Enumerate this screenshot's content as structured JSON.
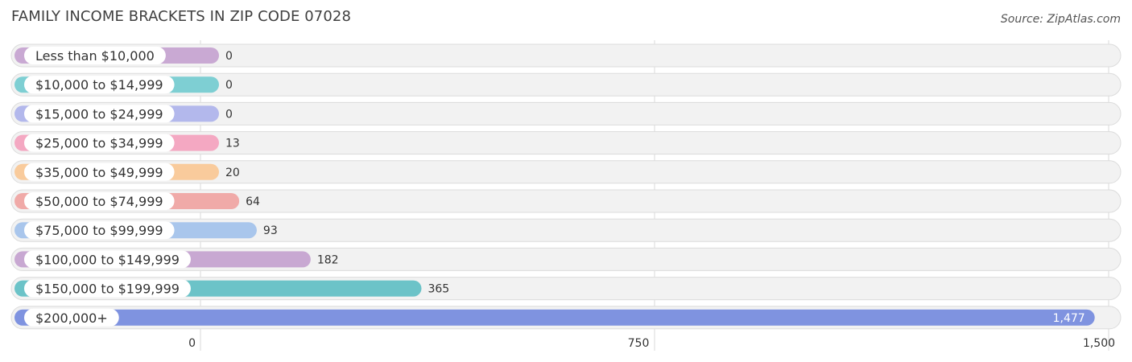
{
  "header": {
    "title": "FAMILY INCOME BRACKETS IN ZIP CODE 07028",
    "source": "Source: ZipAtlas.com"
  },
  "chart_data": {
    "type": "bar",
    "orientation": "horizontal",
    "title": "FAMILY INCOME BRACKETS IN ZIP CODE 07028",
    "categories": [
      "Less than $10,000",
      "$10,000 to $14,999",
      "$15,000 to $24,999",
      "$25,000 to $34,999",
      "$35,000 to $49,999",
      "$50,000 to $74,999",
      "$75,000 to $99,999",
      "$100,000 to $149,999",
      "$150,000 to $199,999",
      "$200,000+"
    ],
    "values": [
      0,
      0,
      0,
      13,
      20,
      64,
      93,
      182,
      365,
      1477
    ],
    "value_labels": [
      "0",
      "0",
      "0",
      "13",
      "20",
      "64",
      "93",
      "182",
      "365",
      "1,477"
    ],
    "colors": [
      "#c9a9d3",
      "#7ecfd3",
      "#b3b8ec",
      "#f4a8c2",
      "#f9cb9c",
      "#f0aaa8",
      "#a9c6ec",
      "#c8a8d2",
      "#6cc3c8",
      "#7f93e0"
    ],
    "xlim": [
      0,
      1500
    ],
    "x_ticks": [
      0,
      750,
      1500
    ],
    "x_tick_labels": [
      "0",
      "750",
      "1,500"
    ],
    "grid": true
  }
}
